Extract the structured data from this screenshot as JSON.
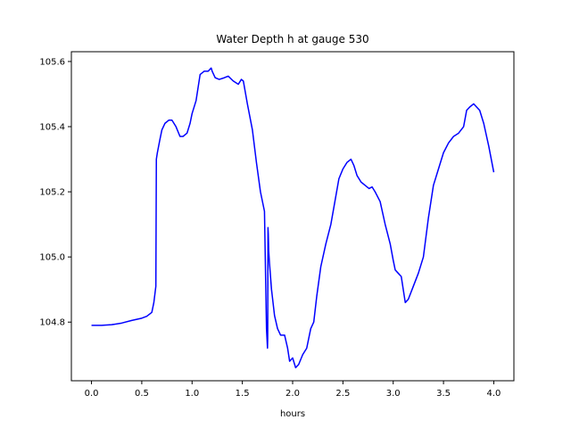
{
  "chart_data": {
    "type": "line",
    "title": "Water Depth h at gauge 530",
    "xlabel": "hours",
    "ylabel": "",
    "xlim": [
      -0.2,
      4.2
    ],
    "ylim": [
      104.62,
      105.63
    ],
    "xticks": [
      0.0,
      0.5,
      1.0,
      1.5,
      2.0,
      2.5,
      3.0,
      3.5,
      4.0
    ],
    "xtick_labels": [
      "0.0",
      "0.5",
      "1.0",
      "1.5",
      "2.0",
      "2.5",
      "3.0",
      "3.5",
      "4.0"
    ],
    "yticks": [
      104.8,
      105.0,
      105.2,
      105.4,
      105.6
    ],
    "ytick_labels": [
      "104.8",
      "105.0",
      "105.2",
      "105.4",
      "105.6"
    ],
    "grid": false,
    "legend": "none",
    "series": [
      {
        "color": "#0000ff",
        "x": [
          0.0,
          0.1,
          0.2,
          0.3,
          0.4,
          0.5,
          0.55,
          0.6,
          0.62,
          0.64,
          0.645,
          0.655,
          0.68,
          0.7,
          0.73,
          0.77,
          0.8,
          0.84,
          0.88,
          0.91,
          0.95,
          0.98,
          1.0,
          1.04,
          1.08,
          1.12,
          1.16,
          1.19,
          1.2,
          1.23,
          1.27,
          1.32,
          1.36,
          1.41,
          1.46,
          1.49,
          1.51,
          1.55,
          1.6,
          1.64,
          1.68,
          1.72,
          1.74,
          1.75,
          1.752,
          1.755,
          1.758,
          1.762,
          1.77,
          1.79,
          1.82,
          1.85,
          1.88,
          1.92,
          1.95,
          1.97,
          2.0,
          2.03,
          2.06,
          2.1,
          2.14,
          2.18,
          2.21,
          2.24,
          2.28,
          2.33,
          2.38,
          2.42,
          2.46,
          2.5,
          2.54,
          2.58,
          2.61,
          2.64,
          2.68,
          2.72,
          2.76,
          2.79,
          2.82,
          2.87,
          2.92,
          2.97,
          3.0,
          3.02,
          3.05,
          3.08,
          3.1,
          3.12,
          3.15,
          3.2,
          3.25,
          3.3,
          3.35,
          3.4,
          3.45,
          3.5,
          3.55,
          3.6,
          3.65,
          3.7,
          3.73,
          3.76,
          3.8,
          3.83,
          3.86,
          3.9,
          3.95,
          4.0
        ],
        "y": [
          104.79,
          104.79,
          104.792,
          104.797,
          104.805,
          104.812,
          104.818,
          104.83,
          104.86,
          104.91,
          105.3,
          105.32,
          105.36,
          105.39,
          105.41,
          105.42,
          105.42,
          105.4,
          105.37,
          105.37,
          105.38,
          105.41,
          105.44,
          105.48,
          105.56,
          105.57,
          105.57,
          105.58,
          105.57,
          105.55,
          105.545,
          105.55,
          105.555,
          105.54,
          105.53,
          105.545,
          105.54,
          105.47,
          105.39,
          105.29,
          105.2,
          105.14,
          104.78,
          104.72,
          104.75,
          105.09,
          105.07,
          105.02,
          104.98,
          104.9,
          104.82,
          104.78,
          104.76,
          104.76,
          104.72,
          104.68,
          104.69,
          104.66,
          104.67,
          104.7,
          104.72,
          104.78,
          104.8,
          104.88,
          104.97,
          105.04,
          105.1,
          105.17,
          105.24,
          105.27,
          105.29,
          105.3,
          105.28,
          105.25,
          105.23,
          105.22,
          105.21,
          105.215,
          105.2,
          105.17,
          105.1,
          105.04,
          104.99,
          104.96,
          104.95,
          104.94,
          104.9,
          104.86,
          104.87,
          104.91,
          104.95,
          105.0,
          105.12,
          105.22,
          105.27,
          105.32,
          105.35,
          105.37,
          105.38,
          105.4,
          105.45,
          105.46,
          105.47,
          105.46,
          105.45,
          105.41,
          105.34,
          105.26
        ]
      }
    ]
  }
}
